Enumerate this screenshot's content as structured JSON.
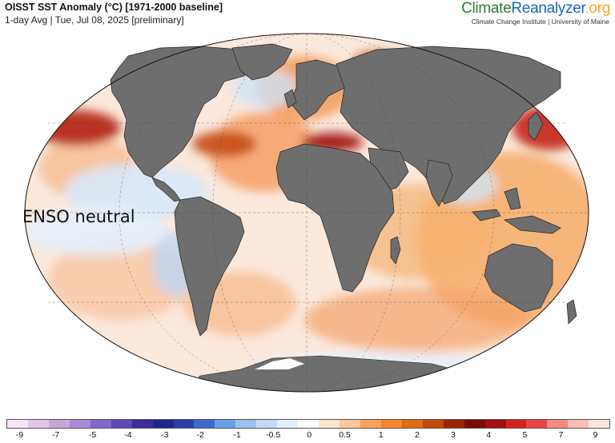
{
  "header": {
    "title": "OISST SST Anomaly (°C) [1971-2000 baseline]",
    "subtitle": "1-day Avg | Tue, Jul 08, 2025 [preliminary]"
  },
  "brand": {
    "part1": "Climate",
    "part2": "Reanalyzer",
    "part3": ".org",
    "tagline": "Climate Change Institute | University of Maine"
  },
  "annotation": {
    "label": "ENSO neutral"
  },
  "legend": {
    "colors": [
      "#f4e4f4",
      "#e3c5ea",
      "#c9a4dd",
      "#a98ad5",
      "#8468c8",
      "#5e48b5",
      "#3a2c9a",
      "#21248a",
      "#2a3fa6",
      "#3e6ad0",
      "#6aa0e6",
      "#97c3ef",
      "#c2dcf5",
      "#e2eefa",
      "#ffffff",
      "#fde4cc",
      "#fcc89a",
      "#f9a45a",
      "#f3852e",
      "#e06a15",
      "#c2470d",
      "#9a2505",
      "#7a0c06",
      "#a0100e",
      "#d62020",
      "#ea4545",
      "#f38a80",
      "#f8bdb5",
      "#fde3e0"
    ],
    "ticks": [
      {
        "label": "-9",
        "at": 0.022
      },
      {
        "label": "-7",
        "at": 0.082
      },
      {
        "label": "-5",
        "at": 0.143
      },
      {
        "label": "-4",
        "at": 0.202
      },
      {
        "label": "-3",
        "at": 0.263
      },
      {
        "label": "-2",
        "at": 0.322
      },
      {
        "label": "-1",
        "at": 0.383
      },
      {
        "label": "-0.5",
        "at": 0.443
      },
      {
        "label": "0",
        "at": 0.503
      },
      {
        "label": "0.5",
        "at": 0.562
      },
      {
        "label": "1",
        "at": 0.622
      },
      {
        "label": "2",
        "at": 0.682
      },
      {
        "label": "3",
        "at": 0.742
      },
      {
        "label": "4",
        "at": 0.801
      },
      {
        "label": "5",
        "at": 0.861
      },
      {
        "label": "7",
        "at": 0.921
      },
      {
        "label": "9",
        "at": 0.978
      }
    ]
  }
}
